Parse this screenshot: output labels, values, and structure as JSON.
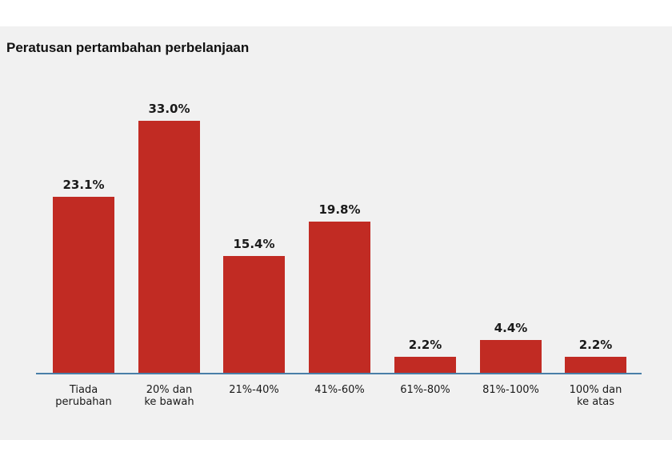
{
  "title": "Peratusan pertambahan perbelanjaan",
  "colors": {
    "bar": "#c12b23",
    "axis": "#4a7fa8",
    "background": "#f1f1f1"
  },
  "bars": [
    {
      "label_line1": "Tiada",
      "label_line2": "perubahan",
      "value": 23.1,
      "display": "23.1%"
    },
    {
      "label_line1": "20% dan",
      "label_line2": "ke bawah",
      "value": 33.0,
      "display": "33.0%"
    },
    {
      "label_line1": "21%-40%",
      "label_line2": "",
      "value": 15.4,
      "display": "15.4%"
    },
    {
      "label_line1": "41%-60%",
      "label_line2": "",
      "value": 19.8,
      "display": "19.8%"
    },
    {
      "label_line1": "61%-80%",
      "label_line2": "",
      "value": 2.2,
      "display": "2.2%"
    },
    {
      "label_line1": "81%-100%",
      "label_line2": "",
      "value": 4.4,
      "display": "4.4%"
    },
    {
      "label_line1": "100% dan",
      "label_line2": "ke atas",
      "value": 2.2,
      "display": "2.2%"
    }
  ],
  "chart_data": {
    "type": "bar",
    "title": "Peratusan pertambahan perbelanjaan",
    "categories": [
      "Tiada perubahan",
      "20% dan ke bawah",
      "21%-40%",
      "41%-60%",
      "61%-80%",
      "81%-100%",
      "100% dan ke atas"
    ],
    "values": [
      23.1,
      33.0,
      15.4,
      19.8,
      2.2,
      4.4,
      2.2
    ],
    "value_labels": [
      "23.1%",
      "33.0%",
      "15.4%",
      "19.8%",
      "2.2%",
      "4.4%",
      "2.2%"
    ],
    "xlabel": "",
    "ylabel": "",
    "ylim": [
      0,
      35
    ],
    "grid": false,
    "legend": "none",
    "y_axis_visible": false
  }
}
